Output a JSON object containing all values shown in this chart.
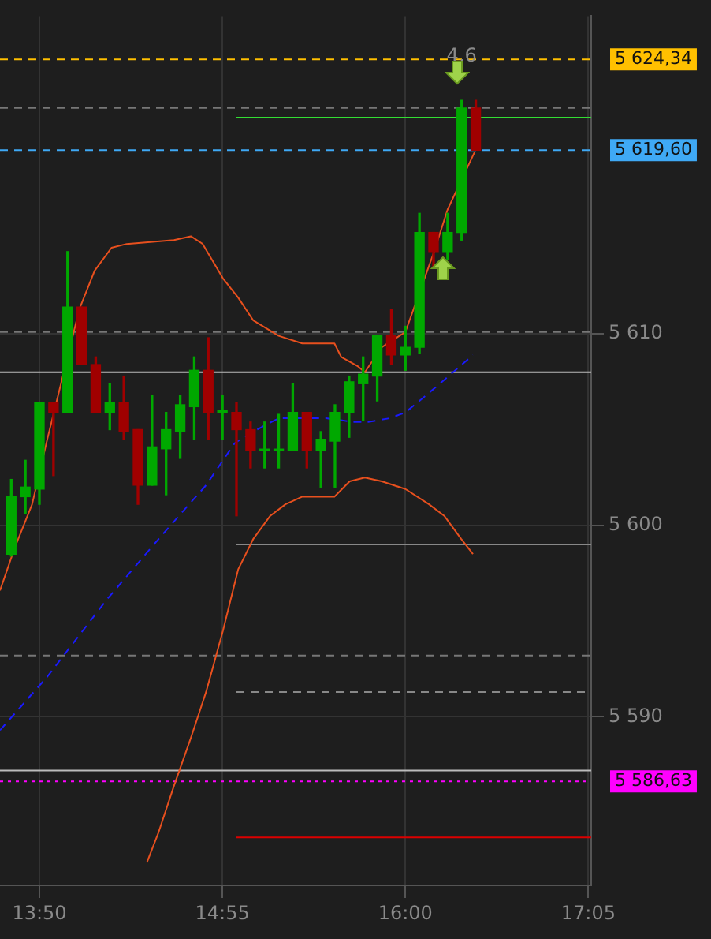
{
  "chart_data": {
    "type": "candlestick",
    "marker": "none",
    "grid": true,
    "legend": false,
    "x": [
      13.6667,
      13.75,
      13.8333,
      13.9167,
      14,
      14.0833,
      14.1667,
      14.25,
      14.3333,
      14.4167,
      14.5,
      14.5833,
      14.6667,
      14.75,
      14.8333,
      14.9167,
      15,
      15.0833,
      15.1667,
      15.25,
      15.3333,
      15.4167,
      15.5,
      15.5833,
      15.6667,
      15.75,
      15.8333,
      15.9167,
      16,
      16.0833,
      16.1667,
      16.25,
      16.3333,
      16.4167
    ],
    "ohlc": [
      [
        5598.5,
        5602.4,
        5598.4,
        5601.5
      ],
      [
        5601.5,
        5603.4,
        5600.6,
        5602.0
      ],
      [
        5601.9,
        5606.4,
        5601.1,
        5606.4
      ],
      [
        5606.4,
        5606.4,
        5602.6,
        5605.9
      ],
      [
        5605.9,
        5614.3,
        5605.9,
        5611.4
      ],
      [
        5611.4,
        5611.4,
        5608.4,
        5608.4
      ],
      [
        5608.4,
        5608.8,
        5605.9,
        5605.9
      ],
      [
        5605.9,
        5607.4,
        5605.0,
        5606.4
      ],
      [
        5606.4,
        5607.8,
        5604.5,
        5604.9
      ],
      [
        5605.0,
        5605.0,
        5601.1,
        5602.1
      ],
      [
        5602.1,
        5606.8,
        5602.1,
        5604.1
      ],
      [
        5604.0,
        5605.9,
        5601.6,
        5605.0
      ],
      [
        5604.9,
        5606.8,
        5603.5,
        5606.3
      ],
      [
        5606.2,
        5608.8,
        5604.5,
        5608.1
      ],
      [
        5608.1,
        5609.8,
        5604.5,
        5605.9
      ],
      [
        5605.9,
        5606.8,
        5604.5,
        5605.9
      ],
      [
        5605.9,
        5606.4,
        5600.5,
        5605.0
      ],
      [
        5605.0,
        5605.4,
        5603.0,
        5603.9
      ],
      [
        5603.9,
        5605.4,
        5603.0,
        5603.9
      ],
      [
        5603.9,
        5605.8,
        5603.0,
        5603.9
      ],
      [
        5603.9,
        5607.4,
        5603.9,
        5605.9
      ],
      [
        5605.9,
        5605.9,
        5603.0,
        5603.9
      ],
      [
        5603.9,
        5604.9,
        5602.0,
        5604.5
      ],
      [
        5604.4,
        5606.3,
        5602.0,
        5605.9
      ],
      [
        5605.9,
        5607.8,
        5604.6,
        5607.5
      ],
      [
        5607.4,
        5608.8,
        5605.5,
        5607.9
      ],
      [
        5607.8,
        5609.9,
        5606.5,
        5609.9
      ],
      [
        5609.9,
        5611.3,
        5608.4,
        5608.9
      ],
      [
        5608.9,
        5610.4,
        5608.1,
        5609.3
      ],
      [
        5609.3,
        5616.3,
        5609.0,
        5615.3
      ],
      [
        5615.3,
        5615.3,
        5613.5,
        5614.3
      ],
      [
        5614.3,
        5616.3,
        5613.9,
        5615.3
      ],
      [
        5615.3,
        5622.2,
        5614.9,
        5621.8
      ],
      [
        5621.8,
        5622.2,
        5619.6,
        5619.6
      ]
    ],
    "colors": [
      "#00a800",
      "#00a800",
      "#00a800",
      "#a00000",
      "#00a800",
      "#a00000",
      "#a00000",
      "#00a800",
      "#a00000",
      "#a00000",
      "#00a800",
      "#00a800",
      "#00a800",
      "#00a800",
      "#a00000",
      "#00a800",
      "#a00000",
      "#a00000",
      "#00a800",
      "#00a800",
      "#00a800",
      "#a00000",
      "#00a800",
      "#00a800",
      "#00a800",
      "#00a800",
      "#00a800",
      "#a00000",
      "#00a800",
      "#00a800",
      "#a00000",
      "#00a800",
      "#00a800",
      "#a00000"
    ],
    "series": [
      {
        "type": "line",
        "color": "#e8501e",
        "x": [
          13.6,
          13.69,
          13.79,
          13.88,
          13.98,
          14.07,
          14.16,
          14.26,
          14.35,
          14.49,
          14.63,
          14.73,
          14.8,
          14.92,
          15.01,
          15.1,
          15.25,
          15.39,
          15.58,
          15.62,
          15.72,
          15.76,
          15.86,
          16.0,
          16.07,
          16.17,
          16.25,
          16.33,
          16.41
        ],
        "values": [
          5596.6,
          5598.9,
          5601.1,
          5604.5,
          null,
          5611.3,
          5613.3,
          5614.5,
          5614.7,
          5614.8,
          5614.9,
          5615.1,
          5614.7,
          5612.9,
          5611.9,
          5610.7,
          5609.9,
          5609.5,
          5609.5,
          5608.8,
          5608.3,
          5608.0,
          5609.3,
          5610.1,
          null,
          5614.3,
          5616.5,
          null,
          5619.5
        ]
      },
      {
        "type": "line",
        "color": "#e8501e",
        "x": [
          14.47,
          14.54,
          14.63,
          14.73,
          14.82,
          14.92,
          15.01,
          15.1,
          15.2,
          15.29,
          15.39,
          15.48,
          15.58,
          15.67,
          15.76,
          15.86,
          16.0,
          16.14,
          16.23,
          16.33,
          16.4
        ],
        "values": [
          5582.4,
          5584.0,
          5586.4,
          5588.9,
          5591.3,
          5594.5,
          5597.7,
          5599.3,
          5600.5,
          5601.1,
          5601.5,
          5601.5,
          5601.5,
          5602.3,
          5602.5,
          5602.3,
          5601.9,
          5601.1,
          5600.5,
          5599.3,
          5598.5
        ]
      },
      {
        "type": "line",
        "color": "#1a1aff",
        "line_style": "dashed",
        "x": [
          13.6,
          13.88,
          14.23,
          14.54,
          14.82,
          14.99,
          15.1,
          15.25,
          15.53,
          15.69,
          15.78,
          15.91,
          16.0,
          16.11,
          16.23,
          16.4
        ],
        "values": [
          5589.3,
          5592.1,
          5596.1,
          5599.3,
          5602.1,
          5604.3,
          5604.9,
          5605.6,
          5605.6,
          5605.4,
          5605.4,
          5605.6,
          5605.9,
          5606.7,
          5607.6,
          5608.9
        ]
      },
      {
        "type": "line",
        "color": "#33dd33",
        "x": [
          15.0,
          17.1
        ],
        "values": [
          5621.3,
          5621.3
        ]
      },
      {
        "type": "line",
        "color": "#888888",
        "x": [
          15.0,
          17.1
        ],
        "values": [
          5599.0,
          5599.0
        ]
      },
      {
        "type": "line",
        "color": "#888888",
        "line_style": "dashed",
        "x": [
          15.0,
          17.1
        ],
        "values": [
          5591.3,
          5591.3
        ]
      },
      {
        "type": "line",
        "color": "#dd0000",
        "x": [
          15.0,
          17.1
        ],
        "values": [
          5583.7,
          5583.7
        ]
      }
    ],
    "ref_lines": [
      {
        "axis": "y",
        "value": 5624.34,
        "label": "5 624,34",
        "color": "#ffc000",
        "line_style": "dashed"
      },
      {
        "axis": "y",
        "value": 5619.6,
        "label": "5 619,60",
        "color": "#3fa9f5",
        "line_style": "dashed"
      },
      {
        "axis": "y",
        "value": 5586.63,
        "label": "5 586,63",
        "color": "#ff00ff",
        "line_style": "dotted"
      },
      {
        "axis": "y",
        "value": 5621.8,
        "color": "#777777",
        "line_style": "dashed"
      },
      {
        "axis": "y",
        "value": 5610.1,
        "color": "#777777",
        "line_style": "dashed"
      },
      {
        "axis": "y",
        "value": 5608.0,
        "color": "#bbbbbb",
        "line_style": "solid"
      },
      {
        "axis": "y",
        "value": 5593.2,
        "color": "#777777",
        "line_style": "dashed"
      },
      {
        "axis": "y",
        "value": 5587.2,
        "color": "#bbbbbb",
        "line_style": "solid"
      }
    ],
    "annotations": [
      {
        "text": "4,6",
        "x": 16.3333,
        "y": 5624.5
      }
    ],
    "xlim": [
      13.6,
      17.1
    ],
    "xticks": [
      {
        "value": 13.8333,
        "label": "13:50"
      },
      {
        "value": 14.9167,
        "label": "14:55"
      },
      {
        "value": 16,
        "label": "16:00"
      },
      {
        "value": 17.0833,
        "label": "17:05"
      }
    ],
    "ylim": [
      5581.2,
      5626.6
    ],
    "yticks": [
      {
        "value": 5590,
        "label": "5 590"
      },
      {
        "value": 5600,
        "label": "5 600"
      },
      {
        "value": 5610,
        "label": "5 610"
      }
    ]
  }
}
